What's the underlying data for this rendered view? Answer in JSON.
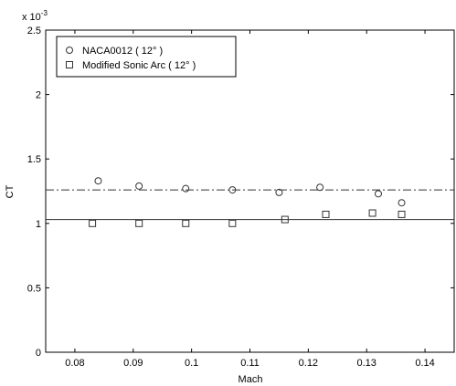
{
  "chart_data": {
    "type": "scatter",
    "xlabel": "Mach",
    "ylabel": "CT",
    "exponent_base": "x 10",
    "exponent_power": "-3",
    "xlim": [
      0.075,
      0.145
    ],
    "ylim": [
      0,
      2.5
    ],
    "x_ticks": [
      "0.08",
      "0.09",
      "0.1",
      "0.11",
      "0.12",
      "0.13",
      "0.14"
    ],
    "y_ticks": [
      "0",
      "0.5",
      "1",
      "1.5",
      "2",
      "2.5"
    ],
    "grid": false,
    "legend_position": "top-left",
    "series": [
      {
        "name": "NACA0012 ( 12° )",
        "marker": "circle",
        "color": "#333333",
        "points": [
          {
            "x": 0.084,
            "y": 1.33
          },
          {
            "x": 0.091,
            "y": 1.29
          },
          {
            "x": 0.099,
            "y": 1.27
          },
          {
            "x": 0.107,
            "y": 1.26
          },
          {
            "x": 0.115,
            "y": 1.24
          },
          {
            "x": 0.122,
            "y": 1.28
          },
          {
            "x": 0.132,
            "y": 1.23
          },
          {
            "x": 0.136,
            "y": 1.16
          }
        ]
      },
      {
        "name": "Modified Sonic Arc ( 12° )",
        "marker": "square",
        "color": "#333333",
        "points": [
          {
            "x": 0.083,
            "y": 1.0
          },
          {
            "x": 0.091,
            "y": 1.0
          },
          {
            "x": 0.099,
            "y": 1.0
          },
          {
            "x": 0.107,
            "y": 1.0
          },
          {
            "x": 0.116,
            "y": 1.03
          },
          {
            "x": 0.123,
            "y": 1.07
          },
          {
            "x": 0.131,
            "y": 1.08
          },
          {
            "x": 0.136,
            "y": 1.07
          }
        ]
      }
    ],
    "reference_lines": [
      {
        "y": 1.26,
        "style": "dash-dot",
        "color": "#333333"
      },
      {
        "y": 1.03,
        "style": "solid",
        "color": "#333333"
      }
    ]
  }
}
